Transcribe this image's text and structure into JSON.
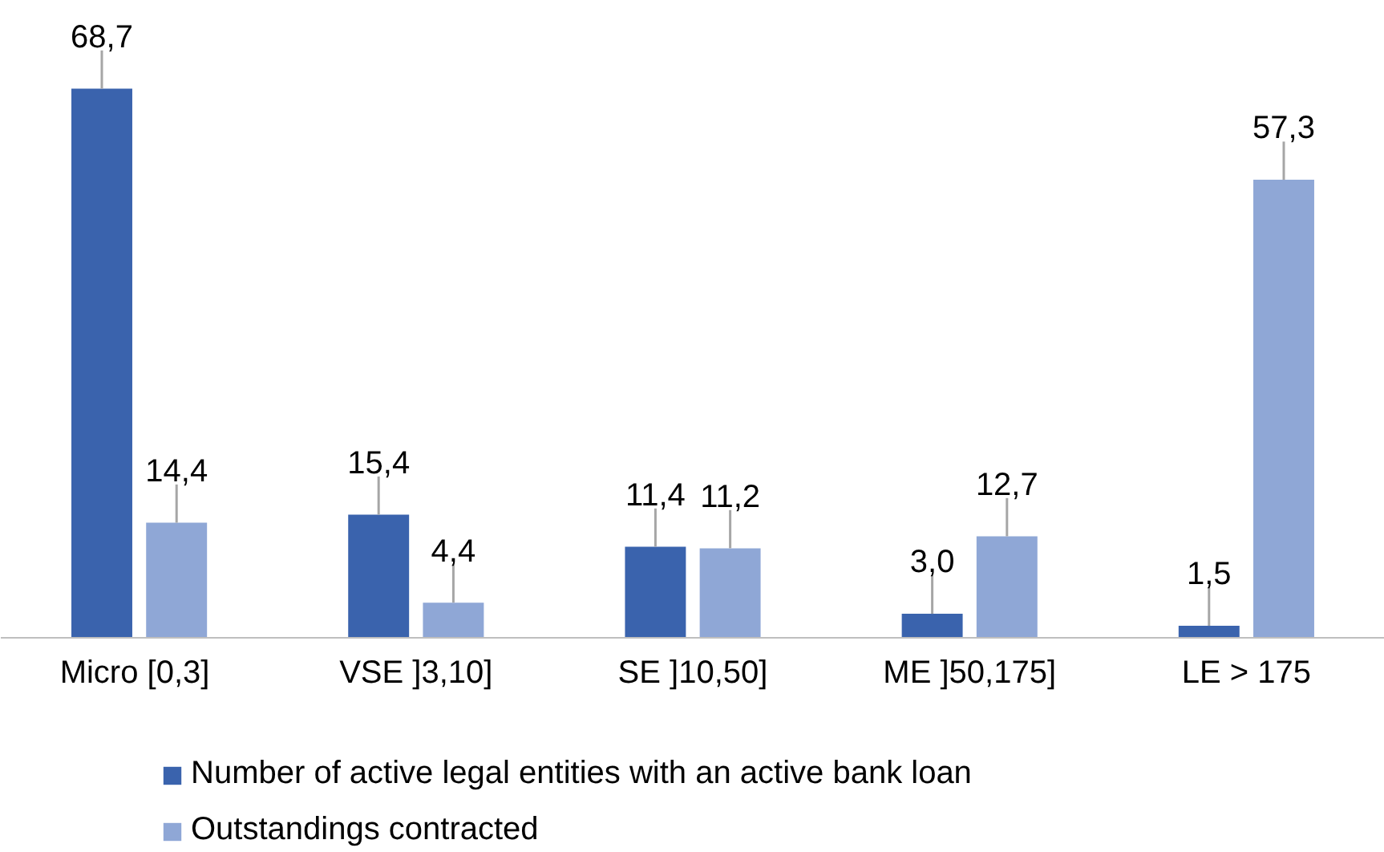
{
  "chart_data": {
    "type": "bar",
    "categories": [
      "Micro  [0,3]",
      "VSE ]3,10]",
      "SE ]10,50]",
      "ME ]50,175]",
      "LE > 175"
    ],
    "series": [
      {
        "name": "Number of active legal entities with an active bank loan",
        "color": "#3a63ad",
        "values": [
          68.7,
          15.4,
          11.4,
          3.0,
          1.5
        ],
        "value_labels": [
          "68,7",
          "15,4",
          "11,4",
          "3,0",
          "1,5"
        ]
      },
      {
        "name": "Outstandings contracted",
        "color": "#8fa7d6",
        "values": [
          14.4,
          4.4,
          11.2,
          12.7,
          57.3
        ],
        "value_labels": [
          "14,4",
          "4,4",
          "11,2",
          "12,7",
          "57,3"
        ]
      }
    ],
    "legend": "bottom"
  }
}
